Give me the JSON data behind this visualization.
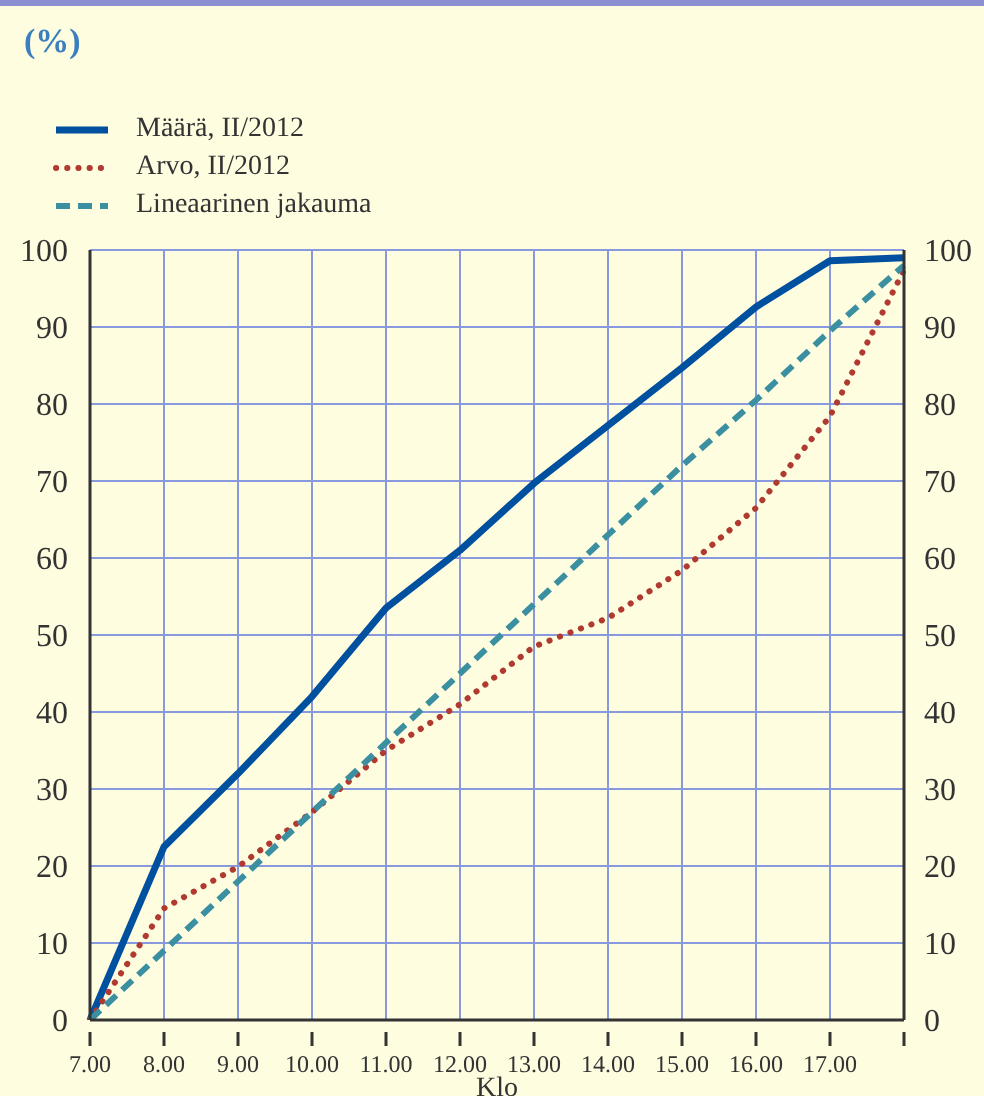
{
  "chart_data": {
    "type": "line",
    "annotations": [
      "(%)"
    ],
    "xlabel": "Klo",
    "categories": [
      "7.00",
      "8.00",
      "9.00",
      "10.00",
      "11.00",
      "12.00",
      "13.00",
      "14.00",
      "15.00",
      "16.00",
      "17.00",
      null
    ],
    "series": [
      {
        "name": "Määrä, II/2012",
        "color": "#0050a0",
        "line_style": "solid",
        "values": [
          0,
          22.5,
          32,
          42,
          53.5,
          61,
          69.7,
          77.2,
          84.7,
          92.6,
          98.6,
          99
        ]
      },
      {
        "name": "Arvo, II/2012",
        "color": "#b03a30",
        "line_style": "dotted",
        "values": [
          0,
          14.5,
          19.9,
          27,
          35,
          41,
          48.5,
          52.2,
          58.4,
          66.5,
          78.4,
          97.4
        ]
      },
      {
        "name": "Lineaarinen jakauma",
        "color": "#3a8fa0",
        "line_style": "dashed",
        "values": [
          0,
          9,
          18,
          27,
          36,
          45,
          54,
          63,
          72,
          80.5,
          89.5,
          98
        ]
      }
    ],
    "ylim": [
      0,
      100
    ],
    "yticks": [
      0,
      10,
      20,
      30,
      40,
      50,
      60,
      70,
      80,
      90,
      100
    ],
    "y2lim": [
      0,
      100
    ],
    "y2ticks": [
      0,
      10,
      20,
      30,
      40,
      50,
      60,
      70,
      80,
      90,
      100
    ],
    "grid": true,
    "legend": "top left"
  }
}
